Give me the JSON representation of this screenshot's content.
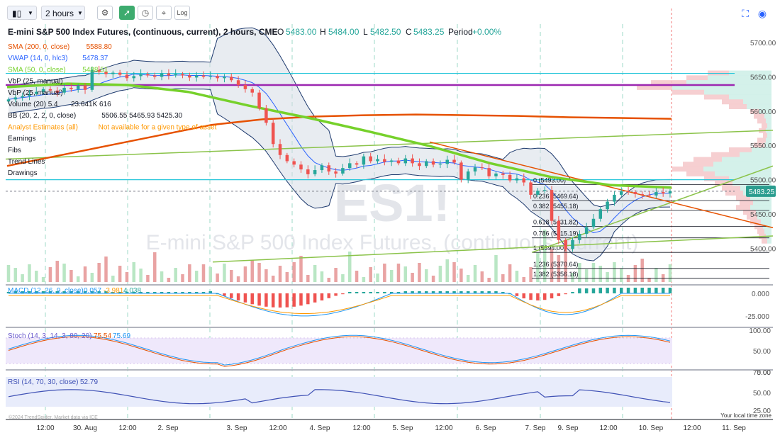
{
  "toolbar": {
    "chart_type_icon": "candlestick-icon",
    "interval": "2 hours",
    "settings_icon": "gear-icon",
    "indicator_icon": "indicators-icon",
    "clock_icon": "clock-icon",
    "drawing_icon": "crosshair-icon",
    "log_label": "Log",
    "fullscreen_icon": "fullscreen-icon",
    "camera_icon": "camera-icon"
  },
  "header": {
    "title": "E-mini S&P 500 Index Futures, (continuous, current), 2 hours, CME",
    "o_label": "O",
    "o_value": "5483.00",
    "h_label": "H",
    "h_value": "5484.00",
    "l_label": "L",
    "l_value": "5482.50",
    "c_label": "C",
    "c_value": "5483.25",
    "period_label": "Period",
    "period_value": "+0.00%"
  },
  "legend": [
    {
      "label": "SMA (200, 0, close)",
      "value": "5588.80",
      "color": "#e65100"
    },
    {
      "label": "VWAP (14, 0, hlc3)",
      "value": "5478.37",
      "color": "#2962ff"
    },
    {
      "label": "SMA (50, 0, close)",
      "value": "5488.51",
      "color": "#76d12b"
    },
    {
      "label": "VbP (25, manual)",
      "value": "",
      "color": "#131722"
    },
    {
      "label": "VbP (25, manual)",
      "value": "",
      "color": "#131722"
    },
    {
      "label": "Volume (20) 5.4",
      "value": "23.641K 616",
      "color": "#131722"
    },
    {
      "label": "BB (20, 2, 2, 0, close)",
      "value": "5506.55 5465.93 5425.30",
      "color": "#131722"
    },
    {
      "label": "Analyst Estimates (all)",
      "value": "Not available for a given type of asset",
      "color": "#ff9800"
    },
    {
      "label": "Earnings",
      "value": "",
      "color": "#131722"
    },
    {
      "label": "Fibs",
      "value": "",
      "color": "#131722"
    },
    {
      "label": "Trend Lines",
      "value": "",
      "color": "#131722"
    },
    {
      "label": "Drawings",
      "value": "",
      "color": "#131722"
    }
  ],
  "watermark": {
    "symbol": "ES1!",
    "name": "E-mini S&P 500 Index Futures, (continuous, current)"
  },
  "price_axis": {
    "ticks": [
      "5700.00",
      "5650.00",
      "5600.00",
      "5550.00",
      "5500.00",
      "5450.00",
      "5400.00"
    ],
    "current_price": "5483.25"
  },
  "fib_levels": [
    {
      "label": "0 (5493.00)",
      "value": 5493.0
    },
    {
      "label": "0.236 (5469.64)",
      "value": 5469.64
    },
    {
      "label": "0.382 (5455.18)",
      "value": 5455.18
    },
    {
      "label": "0.618 (5431.82)",
      "value": 5431.82
    },
    {
      "label": "0.786 (5415.19)",
      "value": 5415.19
    },
    {
      "label": "1 (5394.00)",
      "value": 5394.0
    },
    {
      "label": "1.236 (5370.64)",
      "value": 5370.64
    },
    {
      "label": "1.382 (5356.18)",
      "value": 5356.18
    }
  ],
  "macd": {
    "label": "MACD (12, 26, 9, close)",
    "values": [
      "0.057",
      "-3.981",
      "4.038"
    ],
    "colors": [
      "#2196f3",
      "#ff9800",
      "#26a69a"
    ],
    "ticks": [
      "0.000",
      "-25.000"
    ]
  },
  "stoch": {
    "label": "Stoch (14, 3, 14, 3, 80, 20)",
    "values": [
      "75.54",
      "75.69"
    ],
    "colors": [
      "#e65100",
      "#2196f3"
    ],
    "ticks": [
      "100.00",
      "50.00",
      "0.00"
    ]
  },
  "rsi": {
    "label": "RSI (14, 70, 30, close)",
    "value": "52.79",
    "color": "#3f51b5",
    "ticks": [
      "75.00",
      "50.00",
      "25.00"
    ]
  },
  "time_axis": {
    "labels": [
      "12:00",
      "30. Aug",
      "12:00",
      "2. Sep",
      "3. Sep",
      "12:00",
      "4. Sep",
      "12:00",
      "5. Sep",
      "12:00",
      "6. Sep",
      "7. Sep",
      "9. Sep",
      "12:00",
      "10. Sep",
      "12:00",
      "11. Sep"
    ]
  },
  "footer": {
    "copyright": "©2024 TrendSpider. Market data via ICE",
    "timezone": "Your local time zone"
  },
  "chart_data": {
    "type": "candlestick",
    "title": "E-mini S&P 500 Index Futures, (continuous, current), 2 hours, CME",
    "interval": "2 hours",
    "ylim": [
      5380,
      5720
    ],
    "x_ticks": [
      "12:00",
      "30. Aug",
      "12:00",
      "2. Sep",
      "3. Sep",
      "12:00",
      "4. Sep",
      "12:00",
      "5. Sep",
      "12:00",
      "6. Sep",
      "7. Sep",
      "9. Sep",
      "12:00",
      "10. Sep",
      "12:00",
      "11. Sep"
    ],
    "close": [
      5617,
      5620,
      5622,
      5625,
      5628,
      5632,
      5630,
      5627,
      5634,
      5632,
      5637,
      5631,
      5660,
      5657,
      5654,
      5656,
      5653,
      5648,
      5651,
      5654,
      5652,
      5650,
      5655,
      5652,
      5654,
      5652,
      5649,
      5652,
      5650,
      5651,
      5648,
      5650,
      5645,
      5638,
      5632,
      5627,
      5604,
      5583,
      5552,
      5536,
      5527,
      5522,
      5515,
      5508,
      5514,
      5521,
      5512,
      5509,
      5517,
      5524,
      5522,
      5534,
      5527,
      5530,
      5526,
      5528,
      5524,
      5531,
      5524,
      5520,
      5527,
      5522,
      5523,
      5529,
      5525,
      5500,
      5512,
      5518,
      5517,
      5505,
      5509,
      5507,
      5499,
      5502,
      5496,
      5478,
      5484,
      5485,
      5440,
      5412,
      5399,
      5412,
      5421,
      5431,
      5443,
      5457,
      5468,
      5478,
      5483,
      5482,
      5479,
      5478,
      5477,
      5482,
      5480,
      5483.25
    ],
    "sma200": [
      5520,
      5535,
      5550,
      5565,
      5580,
      5588,
      5592,
      5594,
      5595,
      5594,
      5593,
      5591,
      5590,
      5588.8
    ],
    "sma50": [
      5635,
      5640,
      5638,
      5628,
      5608,
      5590,
      5570,
      5549,
      5524,
      5504,
      5492,
      5488.51
    ],
    "bollinger": {
      "upper": 5506.55,
      "middle": 5465.93,
      "lower": 5425.3
    },
    "vwap": 5478.37,
    "horizontal_levels": [
      5655,
      5638,
      5500
    ],
    "fib_levels": [
      5493.0,
      5469.64,
      5455.18,
      5431.82,
      5415.19,
      5394.0,
      5370.64,
      5356.18
    ],
    "volume_last": "23.641K",
    "macd": {
      "macd": 0.057,
      "signal": -3.981,
      "hist": 4.038
    },
    "stoch": {
      "k": 75.54,
      "d": 75.69
    },
    "rsi": 52.79
  }
}
